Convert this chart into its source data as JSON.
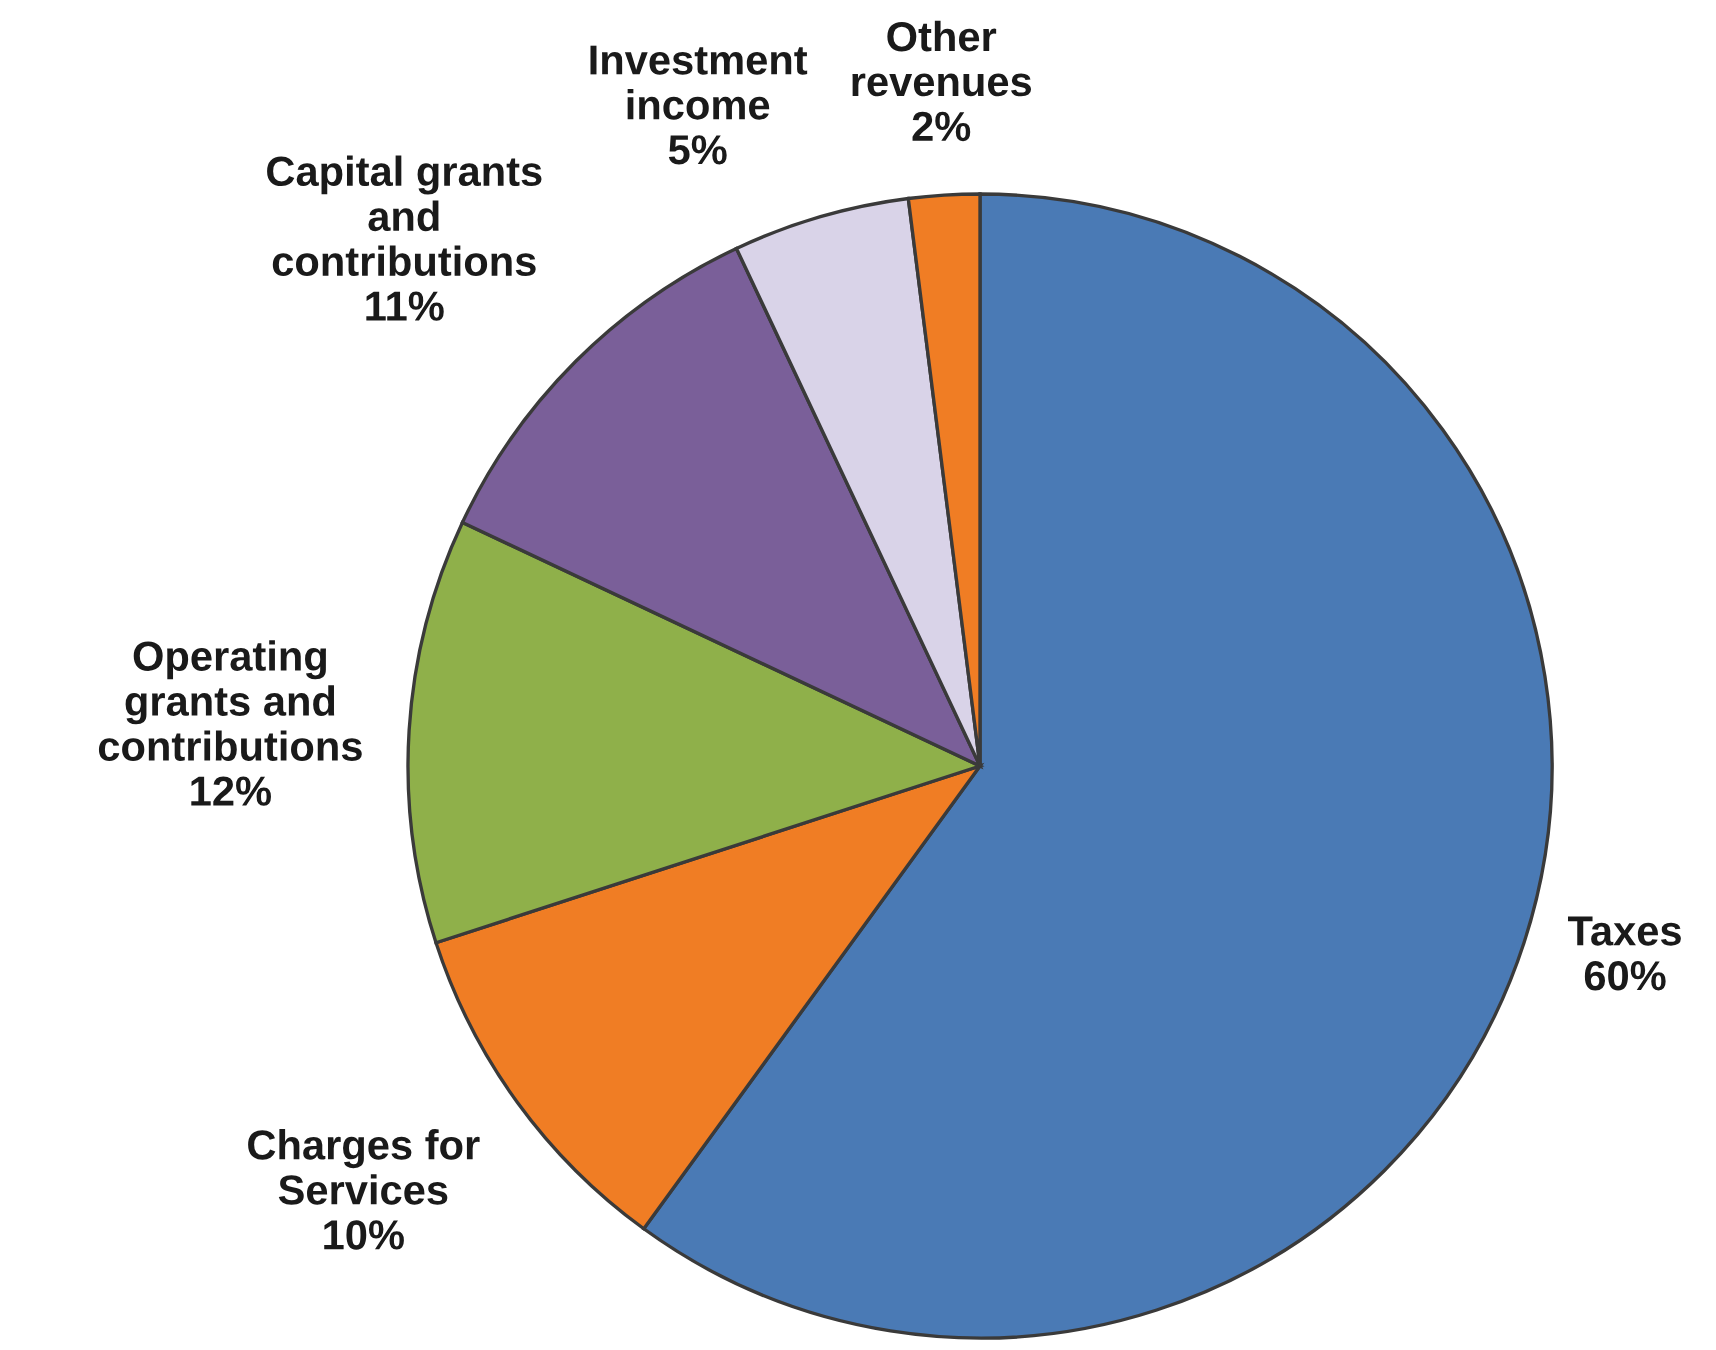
{
  "chart_data": {
    "type": "pie",
    "categories": [
      "Taxes",
      "Charges for\nServices",
      "Operating\ngrants and\ncontributions",
      "Capital grants\nand\ncontributions",
      "Investment\nincome",
      "Other\nrevenues"
    ],
    "values": [
      60,
      10,
      12,
      11,
      5,
      2
    ],
    "colors": [
      "#4a7ab5",
      "#f07d24",
      "#8fb04a",
      "#7a5f99",
      "#d9d3e8",
      "#f07d24"
    ],
    "value_labels": [
      "60%",
      "10%",
      "12%",
      "11%",
      "5%",
      "2%"
    ]
  }
}
